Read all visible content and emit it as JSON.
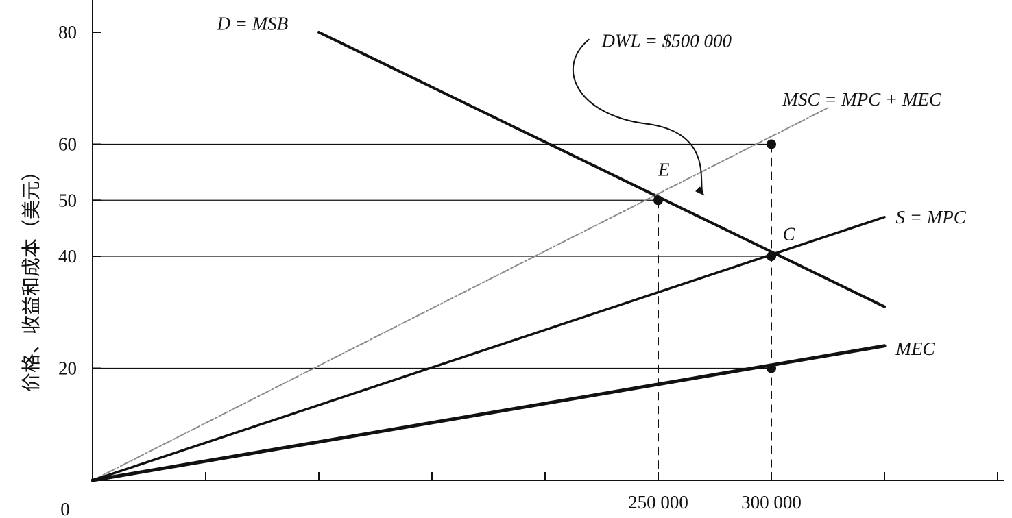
{
  "chart_data": {
    "type": "line",
    "title": "",
    "xlabel": "",
    "ylabel": "价格、收益和成本（美元）",
    "xlim": [
      0,
      400000
    ],
    "ylim": [
      0,
      85
    ],
    "origin_label": "0",
    "x_ticks": [
      50000,
      100000,
      150000,
      200000,
      250000,
      300000,
      350000,
      400000
    ],
    "x_tick_labels": [
      {
        "x": 250000,
        "label": "250 000"
      },
      {
        "x": 300000,
        "label": "300 000"
      }
    ],
    "y_ticks": [
      {
        "y": 20,
        "label": "20"
      },
      {
        "y": 40,
        "label": "40"
      },
      {
        "y": 50,
        "label": "50"
      },
      {
        "y": 60,
        "label": "60"
      },
      {
        "y": 80,
        "label": "80"
      }
    ],
    "guide_lines": [
      {
        "y": 60,
        "x_end": 300000
      },
      {
        "y": 50,
        "x_end": 250000
      },
      {
        "y": 40,
        "x_end": 300000
      },
      {
        "y": 20,
        "x_end": 300000
      }
    ],
    "dropdown_lines": [
      {
        "x": 250000,
        "y_top": 50
      },
      {
        "x": 300000,
        "y_top": 60
      }
    ],
    "series": [
      {
        "name": "D = MSB",
        "color": "#111111",
        "width": 4,
        "points": [
          [
            100000,
            80
          ],
          [
            350000,
            31
          ]
        ],
        "label_at": [
          55000,
          81.5
        ]
      },
      {
        "name": "MSC = MPC + MEC",
        "color": "#8a8a8a",
        "width": 2,
        "points": [
          [
            0,
            0
          ],
          [
            325000,
            66.5
          ]
        ],
        "label_at": [
          305000,
          68
        ]
      },
      {
        "name": "S = MPC",
        "color": "#111111",
        "width": 3.5,
        "points": [
          [
            0,
            0
          ],
          [
            350000,
            47
          ]
        ],
        "label_at": [
          355000,
          47
        ]
      },
      {
        "name": "MEC",
        "color": "#111111",
        "width": 5,
        "points": [
          [
            0,
            0
          ],
          [
            350000,
            24
          ]
        ],
        "label_at": [
          355000,
          23.5
        ]
      }
    ],
    "points": [
      {
        "name": "E",
        "x": 250000,
        "y": 50,
        "label": "E",
        "label_dx": -5,
        "label_dy": 5.5
      },
      {
        "name": "C",
        "x": 300000,
        "y": 40,
        "label": "C",
        "label_dx": 5000,
        "label_dy": 4
      },
      {
        "name": "msc-point",
        "x": 300000,
        "y": 60,
        "label": ""
      },
      {
        "name": "mec-point",
        "x": 300000,
        "y": 20,
        "label": ""
      }
    ],
    "annotations": [
      {
        "text": "DWL = $500 000",
        "at": [
          225000,
          78.5
        ],
        "arrow_to": [
          270000,
          51
        ]
      }
    ]
  }
}
